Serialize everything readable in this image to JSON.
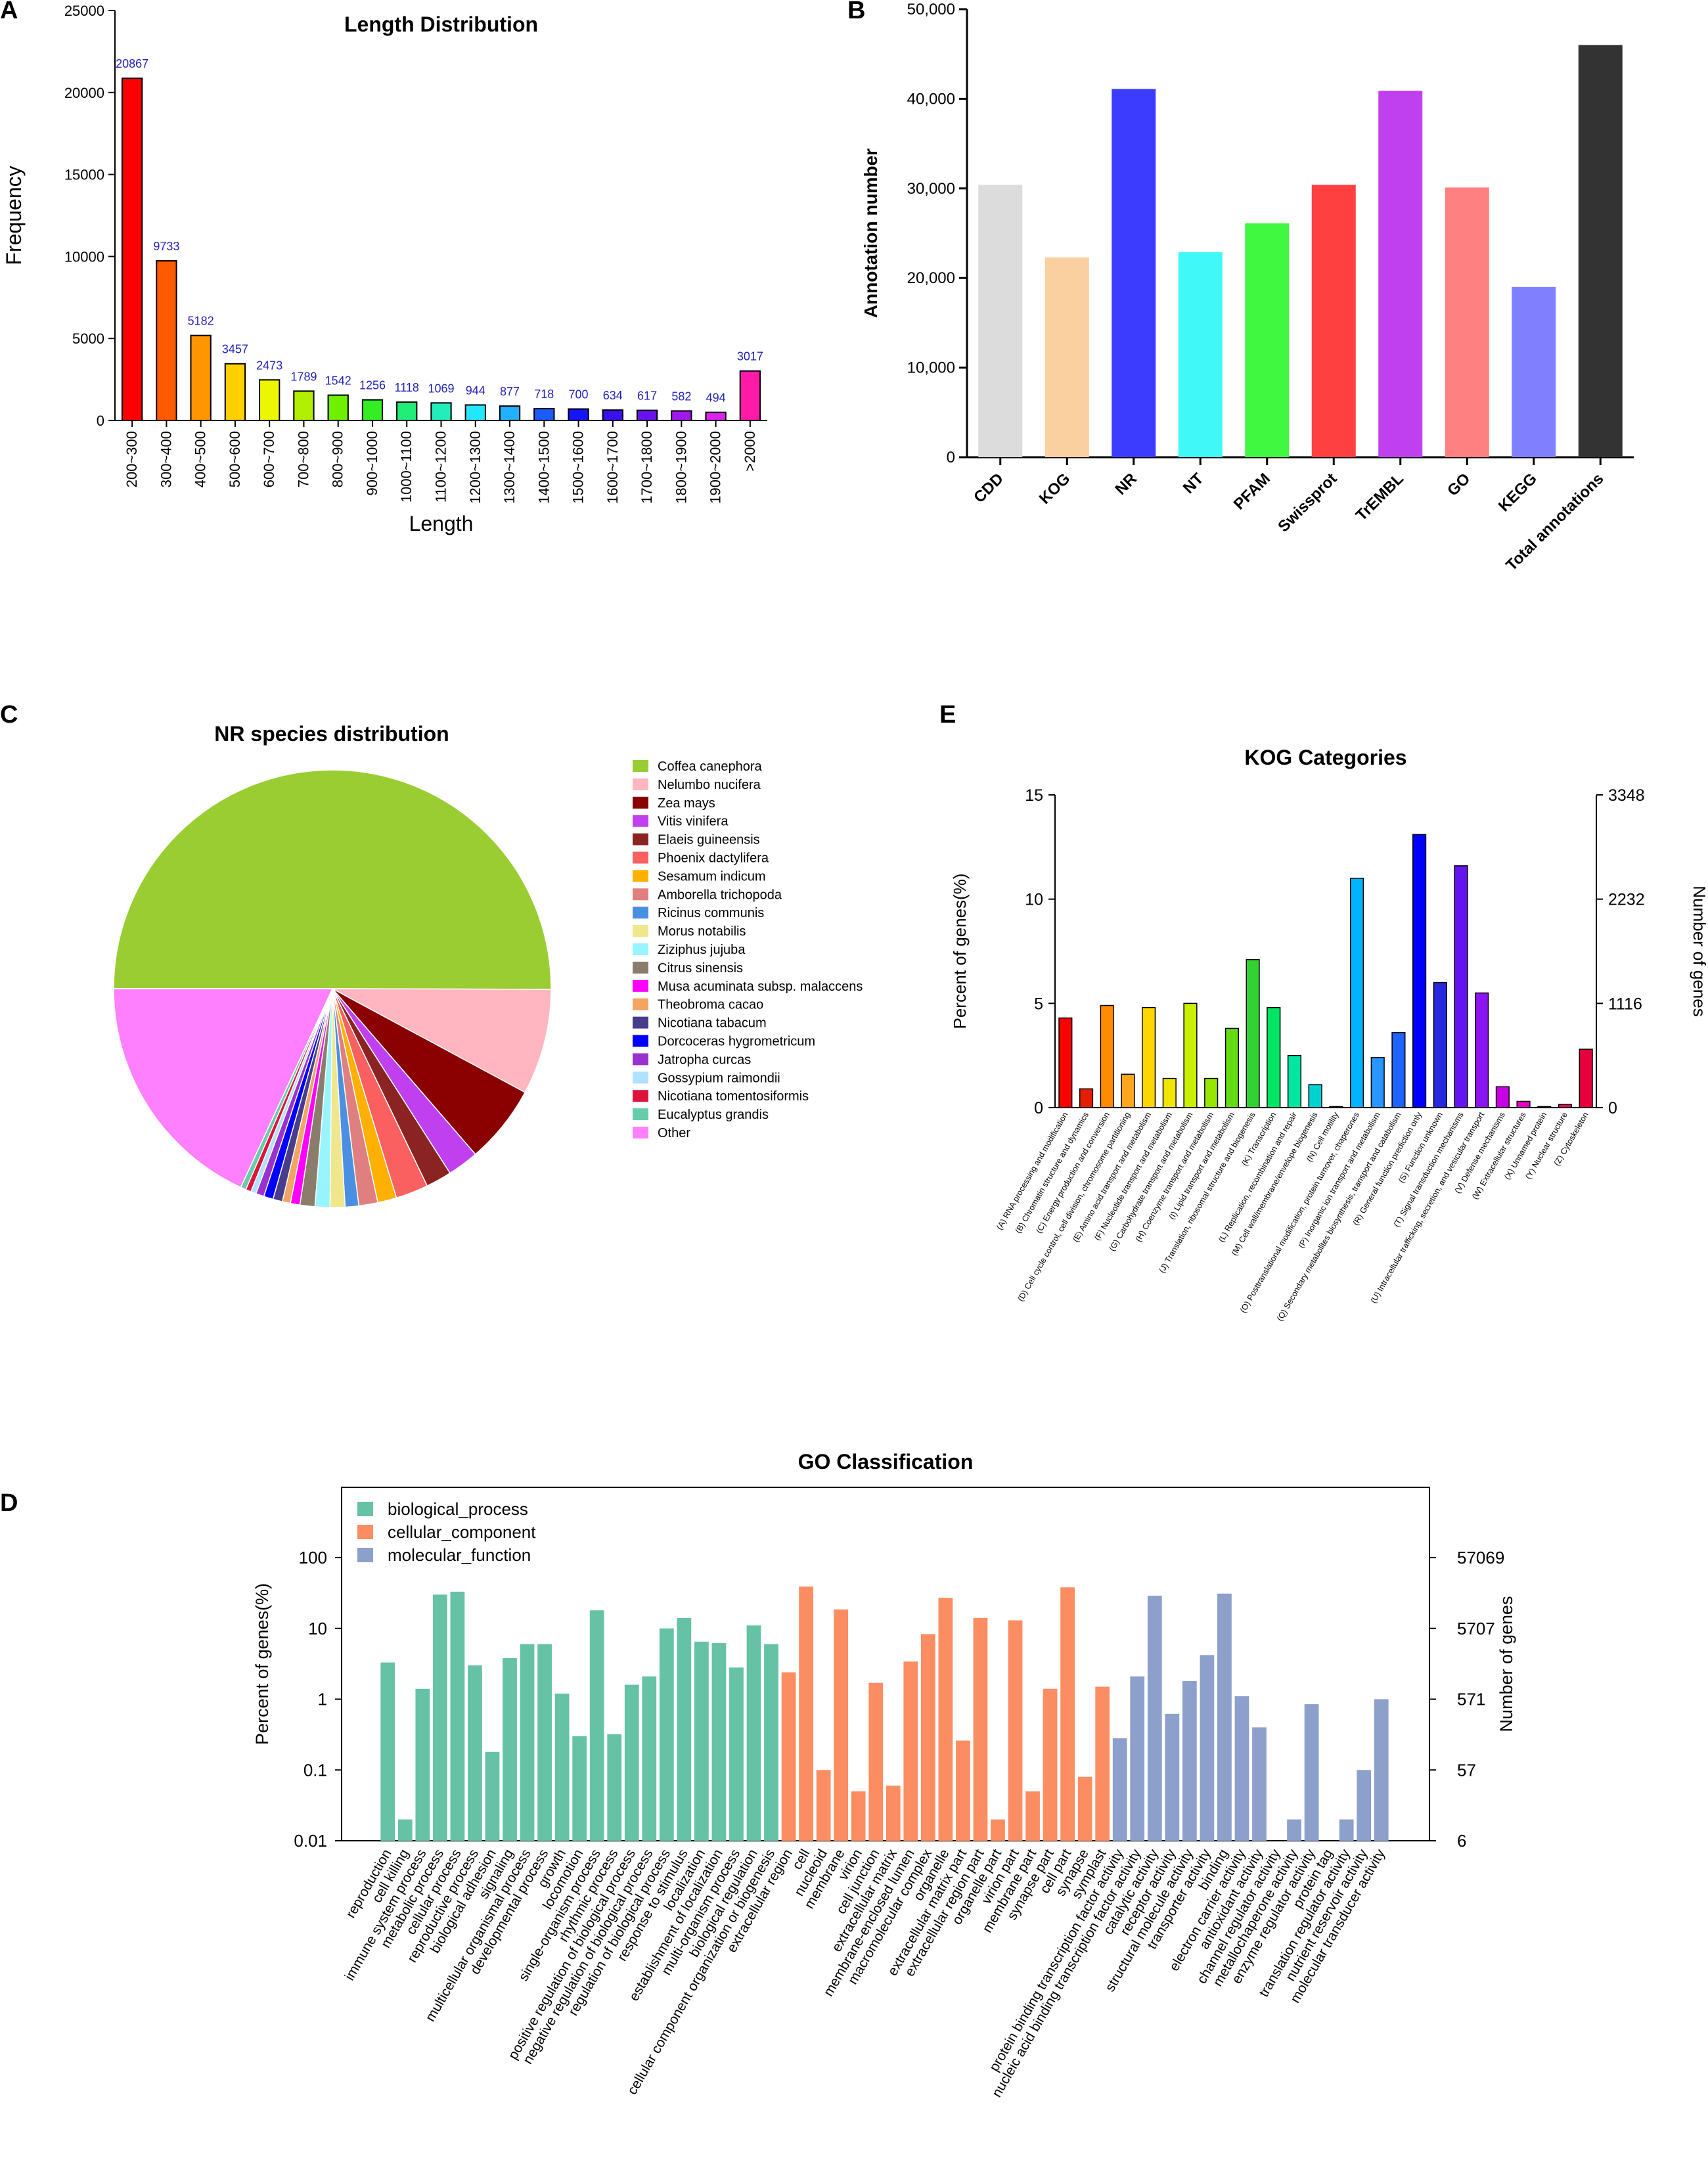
{
  "panels": {
    "A": "A",
    "B": "B",
    "C": "C",
    "D": "D",
    "E": "E"
  },
  "chart_data": [
    {
      "id": "A",
      "type": "bar",
      "title": "Length Distribution",
      "xlabel": "Length",
      "ylabel": "Frequency",
      "ylim": [
        0,
        25000
      ],
      "yticks": [
        "0",
        "5000",
        "10000",
        "15000",
        "20000",
        "25000"
      ],
      "categories": [
        "200~300",
        "300~400",
        "400~500",
        "500~600",
        "600~700",
        "700~800",
        "800~900",
        "900~1000",
        "1000~1100",
        "1100~1200",
        "1200~1300",
        "1300~1400",
        "1400~1500",
        "1500~1600",
        "1600~1700",
        "1700~1800",
        "1800~1900",
        "1900~2000",
        ">2000"
      ],
      "values": [
        20867,
        9733,
        5182,
        3457,
        2473,
        1789,
        1542,
        1256,
        1118,
        1069,
        944,
        877,
        718,
        700,
        634,
        617,
        582,
        494,
        3017
      ],
      "data_labels": [
        "20867",
        "9733",
        "5182",
        "3457",
        "2473",
        "1789",
        "1542",
        "1256",
        "1118",
        "1069",
        "944",
        "877",
        "718",
        "700",
        "634",
        "617",
        "582",
        "494",
        "3017"
      ],
      "colors": [
        "#ff0000",
        "#ff5a00",
        "#ff9500",
        "#ffd000",
        "#ecf600",
        "#b0ef00",
        "#6ef000",
        "#33ee22",
        "#22ee77",
        "#22eebb",
        "#22e8ff",
        "#22b0ff",
        "#1a5cff",
        "#1414ff",
        "#3a10ee",
        "#6a12ee",
        "#a018ee",
        "#dd22ee",
        "#ff1aa8"
      ]
    },
    {
      "id": "B",
      "type": "bar",
      "title": "",
      "xlabel": "",
      "ylabel": "Annotation number",
      "ylim": [
        0,
        50000
      ],
      "yticks": [
        "0",
        "10,000",
        "20,000",
        "30,000",
        "40,000",
        "50,000"
      ],
      "categories": [
        "CDD",
        "KOG",
        "NR",
        "NT",
        "PFAM",
        "Swissprot",
        "TrEMBL",
        "GO",
        "KEGG",
        "Total annotations"
      ],
      "values": [
        30400,
        22300,
        41100,
        22900,
        26100,
        30400,
        40900,
        30100,
        19000,
        46000
      ],
      "colors": [
        "#dcdcdc",
        "#fbd0a0",
        "#3c3cff",
        "#40f8f8",
        "#40f840",
        "#ff4040",
        "#c040f0",
        "#ff8080",
        "#8080ff",
        "#333333"
      ]
    },
    {
      "id": "C",
      "type": "pie",
      "title": "NR species distribution",
      "labels": [
        "Coffea canephora",
        "Nelumbo nucifera",
        "Zea mays",
        "Vitis vinifera",
        "Elaeis guineensis",
        "Phoenix dactylifera",
        "Sesamum indicum",
        "Amborella trichopoda",
        "Ricinus communis",
        "Morus notabilis",
        "Ziziphus jujuba",
        "Citrus sinensis",
        "Musa acuminata subsp. malaccens",
        "Theobroma cacao",
        "Nicotiana tabacum",
        "Dorcoceras hygrometricum",
        "Jatropha curcas",
        "Gossypium raimondii",
        "Nicotiana tomentosiformis",
        "Eucalyptus grandis",
        "Other"
      ],
      "values": [
        50.0,
        7.8,
        5.8,
        2.3,
        1.9,
        2.4,
        1.4,
        1.4,
        1.0,
        1.1,
        1.1,
        1.1,
        0.7,
        0.6,
        0.7,
        0.7,
        0.6,
        0.4,
        0.4,
        0.4,
        18.1
      ],
      "colors": [
        "#9acd32",
        "#ffb6c1",
        "#8b0000",
        "#c040f0",
        "#8b2323",
        "#fa6060",
        "#ffb000",
        "#e07f7f",
        "#4a90e2",
        "#f0e68c",
        "#98f5ff",
        "#8b7d6b",
        "#ff00ff",
        "#f4a460",
        "#483d8b",
        "#0000ff",
        "#9932cc",
        "#b0e2ff",
        "#dc143c",
        "#66cdaa",
        "#ff80ff"
      ],
      "legend_position": "right"
    },
    {
      "id": "E",
      "type": "bar",
      "title": "KOG Categories",
      "ylabel": "Percent of genes(%)",
      "y2label": "Number of genes",
      "ylim": [
        0,
        15
      ],
      "yticks": [
        "0",
        "5",
        "10",
        "15"
      ],
      "y2ticks": [
        "0",
        "1116",
        "2232",
        "3348"
      ],
      "categories": [
        "(A) RNA processing and modification",
        "(B) Chromatin structure and dynamics",
        "(C) Energy production and conversion",
        "(D) Cell cycle control, cell division, chromosome partitioning",
        "(E) Amino acid transport and metabolism",
        "(F) Nucleotide transport and metabolism",
        "(G) Carbohydrate transport and metabolism",
        "(H) Coenzyme transport and metabolism",
        "(I) Lipid transport and metabolism",
        "(J) Translation, ribosomal structure and biogenesis",
        "(K) Transcription",
        "(L) Replication, recombination and repair",
        "(M) Cell wall/membrane/envelope biogenesis",
        "(N) Cell motility",
        "(O) Posttranslational modification, protein turnover, chaperones",
        "(P) Inorganic ion transport and metabolism",
        "(Q) Secondary metabolites biosynthesis, transport and catabolism",
        "(R) General function prediction only",
        "(S) Function unknown",
        "(T) Signal transduction mechanisms",
        "(U) Intracellular trafficking, secretion, and vesicular transport",
        "(V) Defense mechanisms",
        "(W) Extracellular structures",
        "(X) Unnamed protein",
        "(Y) Nuclear structure",
        "(Z) Cytoskeleton"
      ],
      "values": [
        4.3,
        0.9,
        4.9,
        1.6,
        4.8,
        1.4,
        5.0,
        1.4,
        3.8,
        7.1,
        4.8,
        2.5,
        1.1,
        0.05,
        11.0,
        2.4,
        3.6,
        13.1,
        6.0,
        11.6,
        5.5,
        1.0,
        0.3,
        0.05,
        0.15,
        2.8
      ],
      "colors": [
        "#ff0000",
        "#e61e00",
        "#ff8c00",
        "#ffa51e",
        "#ffd700",
        "#f0e600",
        "#c8f000",
        "#96e600",
        "#64dc14",
        "#32d232",
        "#00e664",
        "#00e6a0",
        "#00d2d2",
        "#00c8f0",
        "#00b4ff",
        "#2896ff",
        "#1e64ff",
        "#0000ff",
        "#2828dc",
        "#6414f0",
        "#8c14f0",
        "#c800e6",
        "#e600c8",
        "#f0009b",
        "#ff0064",
        "#e6003c"
      ]
    },
    {
      "id": "D",
      "type": "bar",
      "title": "GO Classification",
      "yscale": "log",
      "ylabel": "Percent of genes(%)",
      "y2label": "Number of genes",
      "ylim": [
        0.01,
        100
      ],
      "yticks": [
        "0.01",
        "0.1",
        "1",
        "10",
        "100"
      ],
      "y2ticks": [
        "6",
        "57",
        "571",
        "5707",
        "57069"
      ],
      "legend": [
        "biological_process",
        "cellular_component",
        "molecular_function"
      ],
      "colors": {
        "biological_process": "#66c2a5",
        "cellular_component": "#fc8d62",
        "molecular_function": "#8da0cb"
      },
      "categories": [
        "reproduction",
        "cell killing",
        "immune system process",
        "metabolic process",
        "cellular process",
        "reproductive process",
        "biological adhesion",
        "signaling",
        "multicellular organismal process",
        "developmental process",
        "growth",
        "locomotion",
        "single-organism process",
        "rhythmic process",
        "positive regulation of biological process",
        "negative regulation of biological process",
        "regulation of biological process",
        "response to stimulus",
        "localization",
        "establishment of localization",
        "multi-organism process",
        "biological regulation",
        "cellular component organization or biogenesis",
        "extracellular region",
        "cell",
        "nucleoid",
        "membrane",
        "virion",
        "cell junction",
        "extracellular matrix",
        "membrane-enclosed lumen",
        "macromolecular complex",
        "organelle",
        "extracellular matrix part",
        "extracellular region part",
        "organelle part",
        "virion part",
        "membrane part",
        "synapse part",
        "cell part",
        "synapse",
        "symplast",
        "protein binding transcription factor activity",
        "nucleic acid binding transcription factor activity",
        "catalytic activity",
        "receptor activity",
        "structural molecule activity",
        "transporter activity",
        "binding",
        "electron carrier activity",
        "antioxidant activity",
        "channel regulator activity",
        "metallochaperone activity",
        "enzyme regulator activity",
        "protein tag",
        "translation regulator activity",
        "nutrient reservoir activity",
        "molecular transducer activity"
      ],
      "groups": [
        "biological_process",
        "biological_process",
        "biological_process",
        "biological_process",
        "biological_process",
        "biological_process",
        "biological_process",
        "biological_process",
        "biological_process",
        "biological_process",
        "biological_process",
        "biological_process",
        "biological_process",
        "biological_process",
        "biological_process",
        "biological_process",
        "biological_process",
        "biological_process",
        "biological_process",
        "biological_process",
        "biological_process",
        "biological_process",
        "biological_process",
        "cellular_component",
        "cellular_component",
        "cellular_component",
        "cellular_component",
        "cellular_component",
        "cellular_component",
        "cellular_component",
        "cellular_component",
        "cellular_component",
        "cellular_component",
        "cellular_component",
        "cellular_component",
        "cellular_component",
        "cellular_component",
        "cellular_component",
        "cellular_component",
        "cellular_component",
        "cellular_component",
        "cellular_component",
        "molecular_function",
        "molecular_function",
        "molecular_function",
        "molecular_function",
        "molecular_function",
        "molecular_function",
        "molecular_function",
        "molecular_function",
        "molecular_function",
        "molecular_function",
        "molecular_function",
        "molecular_function",
        "molecular_function",
        "molecular_function",
        "molecular_function",
        "molecular_function"
      ],
      "values": [
        3.3,
        0.02,
        1.4,
        30,
        33,
        3.0,
        0.18,
        3.8,
        6.0,
        6.0,
        1.2,
        0.3,
        18,
        0.32,
        1.6,
        2.1,
        10,
        14,
        6.5,
        6.2,
        2.8,
        11,
        6.0,
        2.4,
        39,
        0.1,
        18.5,
        0.05,
        1.7,
        0.06,
        3.4,
        8.3,
        27,
        0.26,
        14,
        0.02,
        13,
        0.05,
        1.4,
        38,
        0.08,
        1.5,
        0.28,
        2.1,
        29,
        0.62,
        1.8,
        4.2,
        31,
        1.1,
        0.4,
        0.01,
        0.02,
        0.85,
        0.01,
        0.02,
        0.1,
        1.0
      ]
    }
  ]
}
